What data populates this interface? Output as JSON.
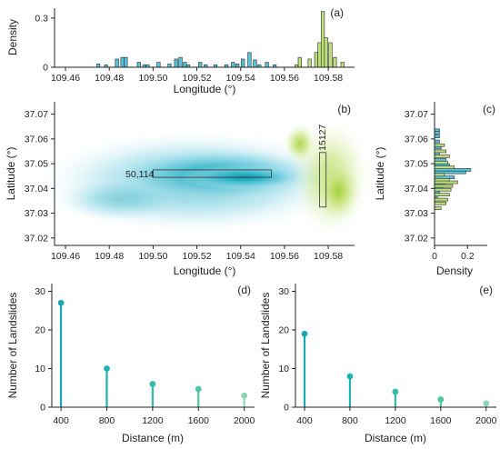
{
  "chart_data": [
    {
      "id": "a",
      "type": "bar",
      "panel_label": "(a)",
      "xlabel": "Longitude (°)",
      "ylabel": "Density",
      "xlim": [
        109.455,
        109.592
      ],
      "ylim": [
        0,
        0.36
      ],
      "xticks": [
        "109.46",
        "109.48",
        "109.50",
        "109.52",
        "109.54",
        "109.56",
        "109.58"
      ],
      "yticks": [
        "0",
        "0.3"
      ],
      "bin_width": 0.0015,
      "series": [
        {
          "color": "#55c3dc",
          "x": [
            109.475,
            109.4785,
            109.4835,
            109.486,
            109.4875,
            109.4935,
            109.496,
            109.4975,
            109.5025,
            109.5075,
            109.5105,
            109.5125,
            109.5145,
            109.516,
            109.5215,
            109.524,
            109.5285,
            109.5335,
            109.5365,
            109.5385,
            109.541,
            109.544,
            109.5465,
            109.5485,
            109.552,
            109.5555
          ],
          "values": [
            0.02,
            0.015,
            0.05,
            0.06,
            0.06,
            0.03,
            0.015,
            0.015,
            0.03,
            0.02,
            0.05,
            0.06,
            0.03,
            0.015,
            0.03,
            0.015,
            0.015,
            0.015,
            0.03,
            0.02,
            0.05,
            0.09,
            0.045,
            0.015,
            0.03,
            0.015
          ]
        },
        {
          "color": "#bde07a",
          "x": [
            109.5655,
            109.567,
            109.5715,
            109.5745,
            109.576,
            109.5775,
            109.579,
            109.581,
            109.583,
            109.5865
          ],
          "values": [
            0.015,
            0.06,
            0.05,
            0.09,
            0.15,
            0.34,
            0.18,
            0.15,
            0.06,
            0.03
          ]
        }
      ]
    },
    {
      "id": "b",
      "type": "heatmap",
      "panel_label": "(b)",
      "xlabel": "Longitude (°)",
      "ylabel": "Latitude (°)",
      "xlim": [
        109.455,
        109.592
      ],
      "ylim": [
        37.017,
        37.075
      ],
      "xticks": [
        "109.46",
        "109.48",
        "109.50",
        "109.52",
        "109.54",
        "109.56",
        "109.58"
      ],
      "yticks": [
        "37.02",
        "37.03",
        "37.04",
        "37.05",
        "37.06",
        "37.07"
      ],
      "density_colors": [
        "#55c3dc",
        "#bde07a"
      ],
      "boxes": [
        {
          "label": "50,114",
          "x0": 109.5,
          "x1": 109.554,
          "y0": 37.0445,
          "y1": 37.0475
        },
        {
          "label": "15127",
          "x0": 109.576,
          "x1": 109.579,
          "y0": 37.0325,
          "y1": 37.0545
        }
      ]
    },
    {
      "id": "c",
      "type": "bar",
      "panel_label": "(c)",
      "orientation": "horizontal",
      "xlabel": "Density",
      "ylabel": "Latitude (°)",
      "xlim": [
        0,
        0.32
      ],
      "ylim": [
        37.017,
        37.075
      ],
      "xticks": [
        "0",
        "0.2"
      ],
      "yticks": [
        "37.02",
        "37.03",
        "37.04",
        "37.05",
        "37.06",
        "37.07"
      ],
      "bin_width": 0.0011,
      "series": [
        {
          "color": "#55c3dc",
          "y": [
            37.0635,
            37.0625,
            37.061,
            37.059,
            37.0565,
            37.054,
            37.0515,
            37.0495,
            37.0475,
            37.0465,
            37.0445,
            37.043,
            37.0415,
            37.0405,
            37.0385,
            37.036
          ],
          "values": [
            0.03,
            0.03,
            0.03,
            0.03,
            0.04,
            0.03,
            0.07,
            0.09,
            0.22,
            0.19,
            0.12,
            0.07,
            0.06,
            0.05,
            0.03,
            0.02
          ]
        },
        {
          "color": "#bde07a",
          "y": [
            37.0575,
            37.055,
            37.053,
            37.0505,
            37.0485,
            37.0455,
            37.0435,
            37.0425,
            37.041,
            37.0395,
            37.0375,
            37.0355,
            37.034,
            37.032
          ],
          "values": [
            0.06,
            0.07,
            0.09,
            0.08,
            0.12,
            0.06,
            0.09,
            0.14,
            0.11,
            0.1,
            0.09,
            0.08,
            0.07,
            0.04
          ]
        }
      ]
    },
    {
      "id": "d",
      "type": "scatter",
      "style": "stem",
      "panel_label": "(d)",
      "xlabel": "Distance (m)",
      "ylabel": "Number of Landslides",
      "xlim": [
        320,
        2090
      ],
      "ylim": [
        0,
        32
      ],
      "xticks": [
        "400",
        "800",
        "1200",
        "1600",
        "2000"
      ],
      "yticks": [
        "0",
        "10",
        "20",
        "30"
      ],
      "x": [
        400,
        800,
        1200,
        1600,
        2000
      ],
      "values": [
        27,
        10,
        6,
        4.7,
        3
      ],
      "colors": [
        "#1ba6b4",
        "#1fb2b4",
        "#33bca8",
        "#50c59f",
        "#8ed5b6"
      ]
    },
    {
      "id": "e",
      "type": "scatter",
      "style": "stem",
      "panel_label": "(e)",
      "xlabel": "Distance (m)",
      "ylabel": "Number of Landslides",
      "xlim": [
        320,
        2090
      ],
      "ylim": [
        0,
        32
      ],
      "xticks": [
        "400",
        "800",
        "1200",
        "1600",
        "2000"
      ],
      "yticks": [
        "0",
        "10",
        "20",
        "30"
      ],
      "x": [
        400,
        800,
        1200,
        1600,
        2000
      ],
      "values": [
        19,
        8,
        4,
        2,
        1
      ],
      "colors": [
        "#1ba6b4",
        "#1fb2b4",
        "#33bca8",
        "#50c59f",
        "#8ed5b6"
      ]
    }
  ]
}
